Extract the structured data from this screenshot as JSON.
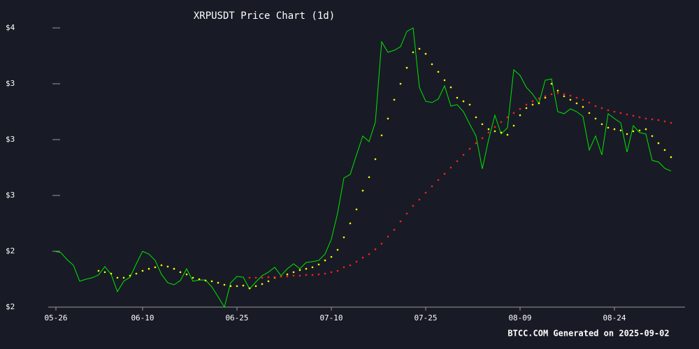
{
  "chart_data": {
    "type": "line",
    "title": "XRPUSDT Price Chart (1d)",
    "footer": "BTCC.COM Generated on 2025-09-02",
    "x": [
      "05-27",
      "05-28",
      "05-29",
      "05-30",
      "05-31",
      "06-01",
      "06-02",
      "06-03",
      "06-04",
      "06-05",
      "06-06",
      "06-07",
      "06-08",
      "06-09",
      "06-10",
      "06-11",
      "06-12",
      "06-13",
      "06-14",
      "06-15",
      "06-16",
      "06-17",
      "06-18",
      "06-19",
      "06-20",
      "06-21",
      "06-22",
      "06-23",
      "06-24",
      "06-25",
      "06-26",
      "06-27",
      "06-28",
      "06-29",
      "06-30",
      "07-01",
      "07-02",
      "07-03",
      "07-04",
      "07-05",
      "07-06",
      "07-07",
      "07-08",
      "07-09",
      "07-10",
      "07-11",
      "07-12",
      "07-13",
      "07-14",
      "07-15",
      "07-16",
      "07-17",
      "07-18",
      "07-19",
      "07-20",
      "07-21",
      "07-22",
      "07-23",
      "07-24",
      "07-25",
      "07-26",
      "07-27",
      "07-28",
      "07-29",
      "07-30",
      "07-31",
      "08-01",
      "08-02",
      "08-03",
      "08-04",
      "08-05",
      "08-06",
      "08-07",
      "08-08",
      "08-09",
      "08-10",
      "08-11",
      "08-12",
      "08-13",
      "08-14",
      "08-15",
      "08-16",
      "08-17",
      "08-18",
      "08-19",
      "08-20",
      "08-21",
      "08-22",
      "08-23",
      "08-24",
      "08-25",
      "08-26",
      "08-27",
      "08-28",
      "08-29",
      "08-30",
      "08-31",
      "09-01",
      "09-02"
    ],
    "xlim": [
      "05-26",
      "09-04"
    ],
    "xticks": [
      "05-26",
      "06-10",
      "06-25",
      "07-10",
      "07-25",
      "08-09",
      "08-24"
    ],
    "ylim": [
      2.0,
      3.5
    ],
    "yticks": [
      {
        "value": 2.0,
        "label": "$2"
      },
      {
        "value": 2.3,
        "label": "$2"
      },
      {
        "value": 2.6,
        "label": "$3"
      },
      {
        "value": 2.9,
        "label": "$3"
      },
      {
        "value": 3.2,
        "label": "$3"
      },
      {
        "value": 3.5,
        "label": "$4"
      }
    ],
    "series": [
      {
        "style": "line",
        "color": "#00e600",
        "values": [
          2.3,
          2.293,
          2.255,
          2.225,
          2.139,
          2.15,
          2.158,
          2.173,
          2.218,
          2.176,
          2.083,
          2.139,
          2.161,
          2.233,
          2.3,
          2.285,
          2.251,
          2.176,
          2.131,
          2.12,
          2.143,
          2.206,
          2.139,
          2.146,
          2.146,
          2.109,
          2.056,
          2.0,
          2.131,
          2.165,
          2.161,
          2.098,
          2.135,
          2.169,
          2.188,
          2.214,
          2.169,
          2.206,
          2.233,
          2.206,
          2.24,
          2.244,
          2.251,
          2.285,
          2.364,
          2.506,
          2.694,
          2.713,
          2.818,
          2.919,
          2.889,
          2.994,
          3.425,
          3.369,
          3.38,
          3.399,
          3.481,
          3.5,
          3.181,
          3.106,
          3.099,
          3.118,
          3.189,
          3.08,
          3.088,
          3.05,
          2.983,
          2.919,
          2.743,
          2.9,
          3.031,
          2.93,
          2.964,
          3.275,
          3.245,
          3.181,
          3.144,
          3.095,
          3.219,
          3.226,
          3.05,
          3.039,
          3.065,
          3.05,
          3.024,
          2.844,
          2.919,
          2.818,
          3.039,
          3.013,
          2.99,
          2.833,
          2.975,
          2.938,
          2.93,
          2.788,
          2.78,
          2.746,
          2.731
        ]
      },
      {
        "style": "dots",
        "color": "#ffff00",
        "values": [
          null,
          null,
          null,
          null,
          null,
          null,
          null,
          2.195,
          2.188,
          2.18,
          2.158,
          2.158,
          2.169,
          2.18,
          2.195,
          2.206,
          2.214,
          2.225,
          2.218,
          2.206,
          2.188,
          2.176,
          2.158,
          2.15,
          2.143,
          2.139,
          2.131,
          2.12,
          2.113,
          2.113,
          2.116,
          2.101,
          2.113,
          2.124,
          2.139,
          2.158,
          2.165,
          2.176,
          2.188,
          2.199,
          2.206,
          2.214,
          2.229,
          2.251,
          2.27,
          2.308,
          2.375,
          2.45,
          2.525,
          2.626,
          2.698,
          2.795,
          2.923,
          3.013,
          3.114,
          3.2,
          3.286,
          3.369,
          3.388,
          3.361,
          3.305,
          3.264,
          3.219,
          3.181,
          3.125,
          3.106,
          3.088,
          3.02,
          2.983,
          2.956,
          2.945,
          2.938,
          2.926,
          2.975,
          3.031,
          3.069,
          3.088,
          3.095,
          3.125,
          3.2,
          3.163,
          3.133,
          3.114,
          3.095,
          3.076,
          3.043,
          3.013,
          2.983,
          2.964,
          2.956,
          2.949,
          2.93,
          2.945,
          2.949,
          2.956,
          2.919,
          2.881,
          2.844,
          2.806
        ]
      },
      {
        "style": "dots",
        "color": "#ff2020",
        "values": [
          null,
          null,
          null,
          null,
          null,
          null,
          null,
          null,
          null,
          null,
          null,
          null,
          null,
          null,
          null,
          null,
          null,
          null,
          null,
          null,
          null,
          null,
          null,
          null,
          null,
          null,
          null,
          null,
          null,
          null,
          null,
          2.158,
          2.158,
          2.158,
          2.161,
          2.161,
          2.165,
          2.165,
          2.169,
          2.169,
          2.173,
          2.173,
          2.176,
          2.18,
          2.188,
          2.195,
          2.214,
          2.225,
          2.244,
          2.266,
          2.285,
          2.311,
          2.341,
          2.379,
          2.416,
          2.461,
          2.503,
          2.544,
          2.578,
          2.615,
          2.649,
          2.683,
          2.716,
          2.75,
          2.784,
          2.818,
          2.851,
          2.881,
          2.908,
          2.938,
          2.968,
          2.994,
          3.02,
          3.043,
          3.065,
          3.088,
          3.106,
          3.121,
          3.133,
          3.144,
          3.151,
          3.144,
          3.136,
          3.125,
          3.114,
          3.099,
          3.08,
          3.069,
          3.058,
          3.05,
          3.043,
          3.035,
          3.028,
          3.02,
          3.013,
          3.009,
          3.005,
          2.998,
          2.99
        ]
      }
    ]
  }
}
